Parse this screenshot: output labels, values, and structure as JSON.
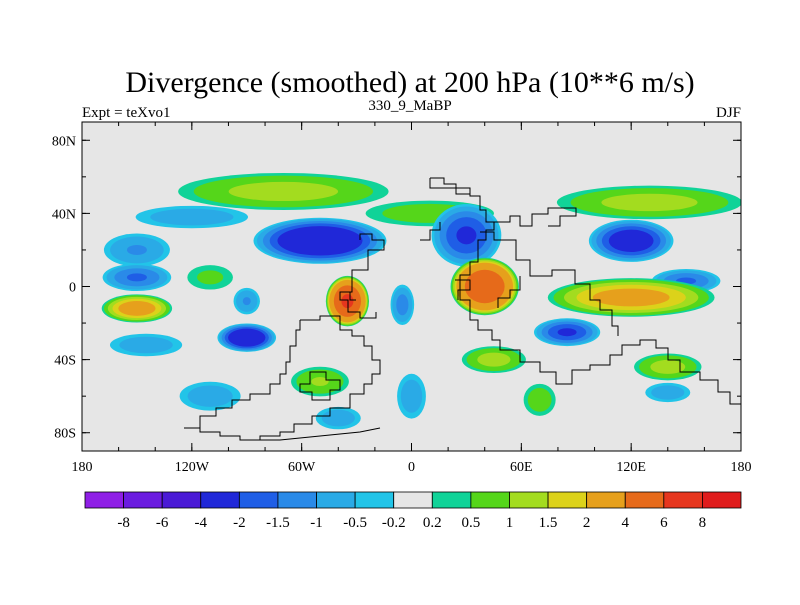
{
  "chart_data": {
    "type": "heatmap",
    "title": "Divergence (smoothed) at 200 hPa (10**6 m/s)",
    "left_string": "Expt = teXvo1",
    "center_string": "330_9_MaBP",
    "right_string": "DJF",
    "x_range": [
      -180,
      180
    ],
    "y_range": [
      -90,
      90
    ],
    "x_ticks": [
      {
        "value": -180,
        "label": "180"
      },
      {
        "value": -120,
        "label": "120W"
      },
      {
        "value": -60,
        "label": "60W"
      },
      {
        "value": 0,
        "label": "0"
      },
      {
        "value": 60,
        "label": "60E"
      },
      {
        "value": 120,
        "label": "120E"
      },
      {
        "value": 180,
        "label": "180"
      }
    ],
    "y_ticks": [
      {
        "value": 80,
        "label": "80N"
      },
      {
        "value": 40,
        "label": "40N"
      },
      {
        "value": 0,
        "label": "0"
      },
      {
        "value": -40,
        "label": "40S"
      },
      {
        "value": -80,
        "label": "80S"
      }
    ],
    "contour_levels": [
      "-8",
      "-6",
      "-4",
      "-2",
      "-1.5",
      "-1",
      "-0.5",
      "-0.2",
      "0.2",
      "0.5",
      "1",
      "1.5",
      "2",
      "4",
      "6",
      "8"
    ],
    "colors": [
      "#8f1fe6",
      "#6b1ce0",
      "#4a1ad6",
      "#2028d8",
      "#1f5ee6",
      "#2a8ae8",
      "#2aaae6",
      "#22c4e8",
      "#e6e6e6",
      "#10d398",
      "#55d61a",
      "#a3dc1f",
      "#dcd21a",
      "#e6a01c",
      "#e66a1a",
      "#e6361e",
      "#e01c1c"
    ],
    "features": [
      {
        "lon": -70,
        "lat": 52,
        "w": 125,
        "h": 11,
        "value": 1.2
      },
      {
        "lon": 130,
        "lat": 46,
        "w": 110,
        "h": 10,
        "value": 1.2
      },
      {
        "lon": 10,
        "lat": 40,
        "w": 80,
        "h": 8,
        "value": 0.8
      },
      {
        "lon": -120,
        "lat": 38,
        "w": 70,
        "h": 7,
        "value": -0.8
      },
      {
        "lon": -50,
        "lat": 25,
        "w": 75,
        "h": 13,
        "value": -3
      },
      {
        "lon": 30,
        "lat": 28,
        "w": 40,
        "h": 18,
        "value": -2
      },
      {
        "lon": 120,
        "lat": 25,
        "w": 48,
        "h": 12,
        "value": -2.5
      },
      {
        "lon": -150,
        "lat": 20,
        "w": 40,
        "h": 10,
        "value": -1
      },
      {
        "lon": -150,
        "lat": 5,
        "w": 40,
        "h": 8,
        "value": -1.5
      },
      {
        "lon": 150,
        "lat": 3,
        "w": 40,
        "h": 7,
        "value": -1.5
      },
      {
        "lon": -110,
        "lat": 5,
        "w": 30,
        "h": 8,
        "value": 0.6
      },
      {
        "lon": -150,
        "lat": -12,
        "w": 40,
        "h": 8,
        "value": 2.5
      },
      {
        "lon": 120,
        "lat": -6,
        "w": 95,
        "h": 11,
        "value": 2.3
      },
      {
        "lon": -35,
        "lat": -8,
        "w": 24,
        "h": 14,
        "value": 6
      },
      {
        "lon": 40,
        "lat": 0,
        "w": 38,
        "h": 16,
        "value": 5.5
      },
      {
        "lon": -90,
        "lat": -8,
        "w": 16,
        "h": 8,
        "value": -1
      },
      {
        "lon": -5,
        "lat": -10,
        "w": 14,
        "h": 12,
        "value": -1.2
      },
      {
        "lon": -90,
        "lat": -28,
        "w": 33,
        "h": 8,
        "value": -3
      },
      {
        "lon": 85,
        "lat": -25,
        "w": 38,
        "h": 8,
        "value": -2
      },
      {
        "lon": -145,
        "lat": -32,
        "w": 45,
        "h": 7,
        "value": -0.8
      },
      {
        "lon": 45,
        "lat": -40,
        "w": 38,
        "h": 8,
        "value": 1.2
      },
      {
        "lon": 140,
        "lat": -44,
        "w": 40,
        "h": 8,
        "value": 1.2
      },
      {
        "lon": -50,
        "lat": -52,
        "w": 35,
        "h": 9,
        "value": 1
      },
      {
        "lon": -110,
        "lat": -60,
        "w": 38,
        "h": 9,
        "value": -0.8
      },
      {
        "lon": 0,
        "lat": -60,
        "w": 18,
        "h": 14,
        "value": -0.8
      },
      {
        "lon": 70,
        "lat": -62,
        "w": 20,
        "h": 10,
        "value": 0.8
      },
      {
        "lon": -40,
        "lat": -72,
        "w": 28,
        "h": 7,
        "value": -0.8
      },
      {
        "lon": 140,
        "lat": -58,
        "w": 28,
        "h": 6,
        "value": -0.8
      }
    ]
  }
}
